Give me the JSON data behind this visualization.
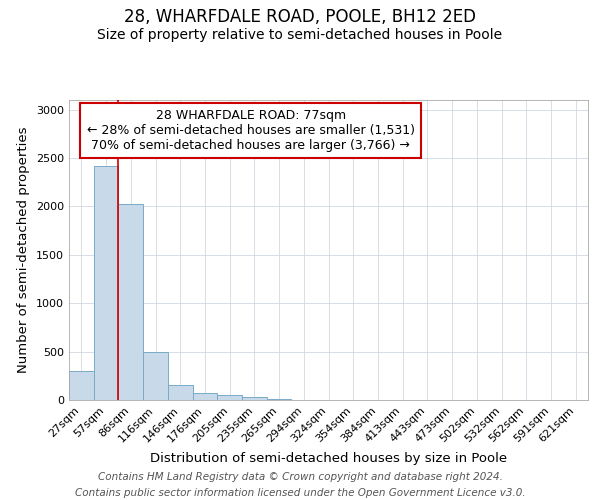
{
  "title": "28, WHARFDALE ROAD, POOLE, BH12 2ED",
  "subtitle": "Size of property relative to semi-detached houses in Poole",
  "xlabel": "Distribution of semi-detached houses by size in Poole",
  "ylabel": "Number of semi-detached properties",
  "categories": [
    "27sqm",
    "57sqm",
    "86sqm",
    "116sqm",
    "146sqm",
    "176sqm",
    "205sqm",
    "235sqm",
    "265sqm",
    "294sqm",
    "324sqm",
    "354sqm",
    "384sqm",
    "413sqm",
    "443sqm",
    "473sqm",
    "502sqm",
    "532sqm",
    "562sqm",
    "591sqm",
    "621sqm"
  ],
  "values": [
    300,
    2420,
    2030,
    500,
    150,
    75,
    55,
    35,
    10,
    0,
    0,
    0,
    0,
    0,
    0,
    0,
    0,
    0,
    0,
    0,
    0
  ],
  "bar_color": "#c8d9ea",
  "bar_edge_color": "#7aaac8",
  "red_line_x": 1.5,
  "annotation_title": "28 WHARFDALE ROAD: 77sqm",
  "annotation_line2": "← 28% of semi-detached houses are smaller (1,531)",
  "annotation_line3": "70% of semi-detached houses are larger (3,766) →",
  "annotation_box_color": "#ffffff",
  "annotation_box_edge": "#cc0000",
  "ylim": [
    0,
    3100
  ],
  "yticks": [
    0,
    500,
    1000,
    1500,
    2000,
    2500,
    3000
  ],
  "footer_line1": "Contains HM Land Registry data © Crown copyright and database right 2024.",
  "footer_line2": "Contains public sector information licensed under the Open Government Licence v3.0.",
  "title_fontsize": 12,
  "subtitle_fontsize": 10,
  "axis_label_fontsize": 9.5,
  "tick_fontsize": 8,
  "annotation_fontsize": 9,
  "footer_fontsize": 7.5
}
